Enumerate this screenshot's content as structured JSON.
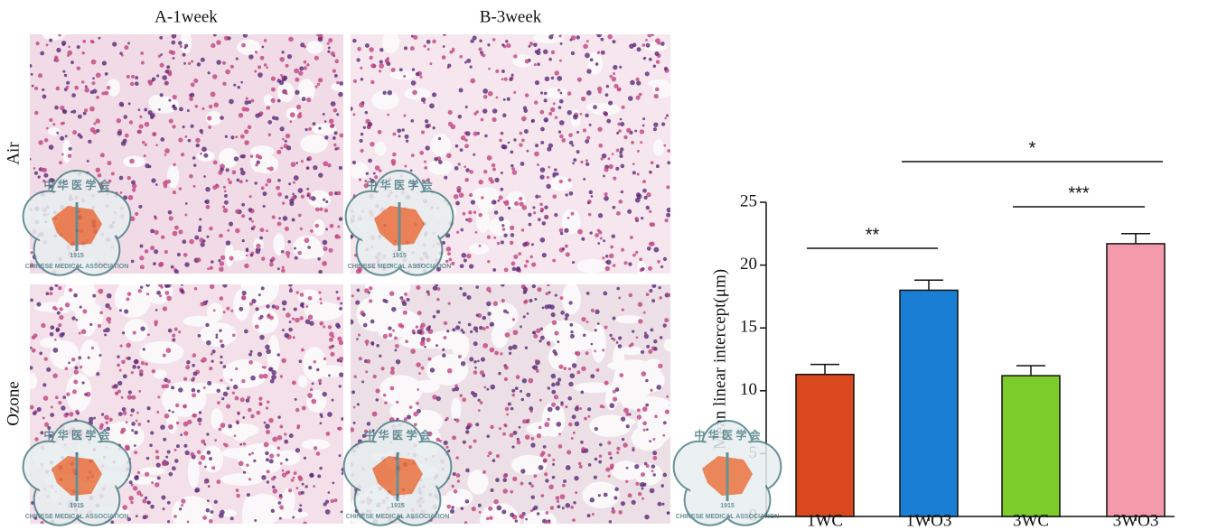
{
  "panels": {
    "columns": [
      "A-1week",
      "B-3week"
    ],
    "rows": [
      "Air",
      "Ozone"
    ]
  },
  "watermark": {
    "chars": "中 华 医 学 会",
    "name": "CHINESE MEDICAL ASSOCIATION",
    "year": "1915"
  },
  "chart_data": {
    "type": "bar",
    "ylabel": "Mean linear intercept(μm)",
    "categories": [
      "1WC",
      "1WO3",
      "3WC",
      "3WO3"
    ],
    "values": [
      11.3,
      18.0,
      11.2,
      21.7
    ],
    "errors": [
      0.8,
      0.8,
      0.8,
      0.8
    ],
    "colors": [
      "#d9481e",
      "#1a7fd4",
      "#7ccc2b",
      "#f59aaa"
    ],
    "ylim": [
      0,
      25
    ],
    "yticks": [
      0,
      5,
      10,
      15,
      20,
      25
    ],
    "annotations": [
      {
        "label": "**",
        "pair": [
          "1WC",
          "1WO3"
        ]
      },
      {
        "label": "***",
        "pair": [
          "3WC",
          "3WO3"
        ]
      },
      {
        "label": "*",
        "pair": [
          "1WO3",
          "3WO3"
        ]
      }
    ]
  }
}
